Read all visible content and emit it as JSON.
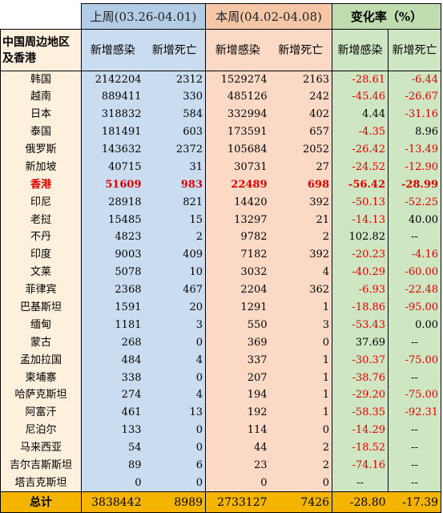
{
  "header": {
    "last_week": "上周(03.26-04.01)",
    "this_week": "本周(04.02-04.08)",
    "change_rate": "变化率（%）",
    "region": "中国周边地区及香港",
    "new_infections": "新增感染",
    "new_deaths": "新增死亡"
  },
  "rows": [
    {
      "name": "韩国",
      "li": "2142204",
      "ld": "2312",
      "ti": "1529274",
      "td": "2163",
      "ci": "-28.61",
      "cd": "-6.44"
    },
    {
      "name": "越南",
      "li": "889411",
      "ld": "330",
      "ti": "485126",
      "td": "242",
      "ci": "-45.46",
      "cd": "-26.67"
    },
    {
      "name": "日本",
      "li": "318832",
      "ld": "584",
      "ti": "332994",
      "td": "402",
      "ci": "4.44",
      "cd": "-31.16"
    },
    {
      "name": "泰国",
      "li": "181491",
      "ld": "603",
      "ti": "173591",
      "td": "657",
      "ci": "-4.35",
      "cd": "8.96"
    },
    {
      "name": "俄罗斯",
      "li": "143632",
      "ld": "2372",
      "ti": "105684",
      "td": "2052",
      "ci": "-26.42",
      "cd": "-13.49"
    },
    {
      "name": "新加坡",
      "li": "40715",
      "ld": "31",
      "ti": "30731",
      "td": "27",
      "ci": "-24.52",
      "cd": "-12.90"
    },
    {
      "name": "香港",
      "li": "51609",
      "ld": "983",
      "ti": "22489",
      "td": "698",
      "ci": "-56.42",
      "cd": "-28.99",
      "highlight": true
    },
    {
      "name": "印尼",
      "li": "28918",
      "ld": "821",
      "ti": "14420",
      "td": "392",
      "ci": "-50.13",
      "cd": "-52.25"
    },
    {
      "name": "老挝",
      "li": "15485",
      "ld": "15",
      "ti": "13297",
      "td": "21",
      "ci": "-14.13",
      "cd": "40.00"
    },
    {
      "name": "不丹",
      "li": "4823",
      "ld": "2",
      "ti": "9782",
      "td": "2",
      "ci": "102.82",
      "cd": "--"
    },
    {
      "name": "印度",
      "li": "9003",
      "ld": "409",
      "ti": "7182",
      "td": "392",
      "ci": "-20.23",
      "cd": "-4.16"
    },
    {
      "name": "文莱",
      "li": "5078",
      "ld": "10",
      "ti": "3032",
      "td": "4",
      "ci": "-40.29",
      "cd": "-60.00"
    },
    {
      "name": "菲律宾",
      "li": "2368",
      "ld": "467",
      "ti": "2204",
      "td": "362",
      "ci": "-6.93",
      "cd": "-22.48"
    },
    {
      "name": "巴基斯坦",
      "li": "1591",
      "ld": "20",
      "ti": "1291",
      "td": "1",
      "ci": "-18.86",
      "cd": "-95.00"
    },
    {
      "name": "缅甸",
      "li": "1181",
      "ld": "3",
      "ti": "550",
      "td": "3",
      "ci": "-53.43",
      "cd": "0.00"
    },
    {
      "name": "蒙古",
      "li": "268",
      "ld": "0",
      "ti": "369",
      "td": "0",
      "ci": "37.69",
      "cd": "--"
    },
    {
      "name": "孟加拉国",
      "li": "484",
      "ld": "4",
      "ti": "337",
      "td": "1",
      "ci": "-30.37",
      "cd": "-75.00"
    },
    {
      "name": "柬埔寨",
      "li": "338",
      "ld": "0",
      "ti": "207",
      "td": "1",
      "ci": "-38.76",
      "cd": "--"
    },
    {
      "name": "哈萨克斯坦",
      "li": "274",
      "ld": "4",
      "ti": "194",
      "td": "1",
      "ci": "-29.20",
      "cd": "-75.00"
    },
    {
      "name": "阿富汗",
      "li": "461",
      "ld": "13",
      "ti": "192",
      "td": "1",
      "ci": "-58.35",
      "cd": "-92.31"
    },
    {
      "name": "尼泊尔",
      "li": "133",
      "ld": "0",
      "ti": "114",
      "td": "0",
      "ci": "-14.29",
      "cd": "--"
    },
    {
      "name": "马来西亚",
      "li": "54",
      "ld": "0",
      "ti": "44",
      "td": "2",
      "ci": "-18.52",
      "cd": "--"
    },
    {
      "name": "吉尔吉斯斯坦",
      "li": "89",
      "ld": "6",
      "ti": "23",
      "td": "2",
      "ci": "-74.16",
      "cd": "--"
    },
    {
      "name": "塔吉克斯坦",
      "li": "0",
      "ld": "0",
      "ti": "0",
      "td": "0",
      "ci": "--",
      "cd": "--"
    }
  ],
  "total": {
    "name": "总计",
    "li": "3838442",
    "ld": "8989",
    "ti": "2733127",
    "td": "7426",
    "ci": "-28.80",
    "cd": "-17.39"
  }
}
